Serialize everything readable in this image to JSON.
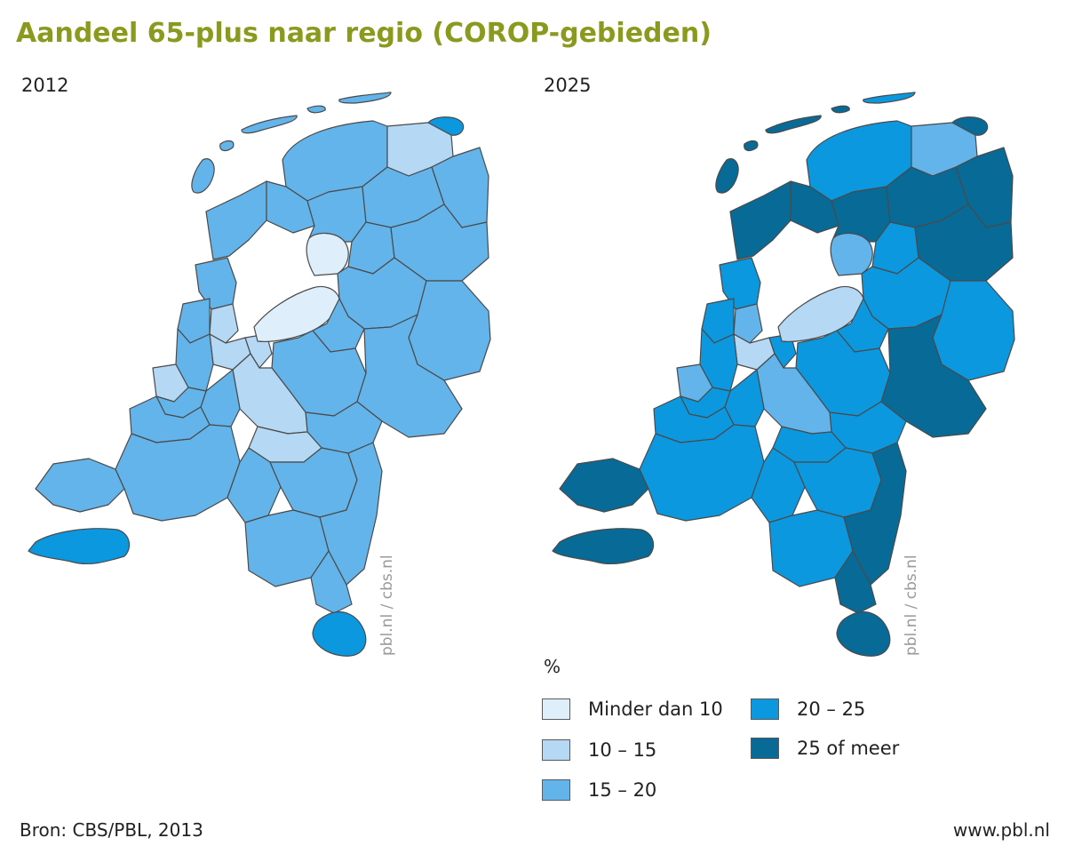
{
  "title": "Aandeel 65-plus naar regio (COROP-gebieden)",
  "maps": [
    {
      "year": "2012",
      "credit": "pbl.nl / cbs.nl"
    },
    {
      "year": "2025",
      "credit": "pbl.nl / cbs.nl"
    }
  ],
  "legend": {
    "unit": "%",
    "items": [
      {
        "label": "Minder dan 10",
        "color": "#deeefb"
      },
      {
        "label": "10 – 15",
        "color": "#b5d8f4"
      },
      {
        "label": "15 – 20",
        "color": "#63b4ea"
      },
      {
        "label": "20 – 25",
        "color": "#0b98df"
      },
      {
        "label": "25 of meer",
        "color": "#086a96"
      }
    ]
  },
  "footer": {
    "source": "Bron: CBS/PBL, 2013",
    "website": "www.pbl.nl"
  },
  "map_colors": {
    "border": "#4a4a4a",
    "water": "#ffffff"
  }
}
